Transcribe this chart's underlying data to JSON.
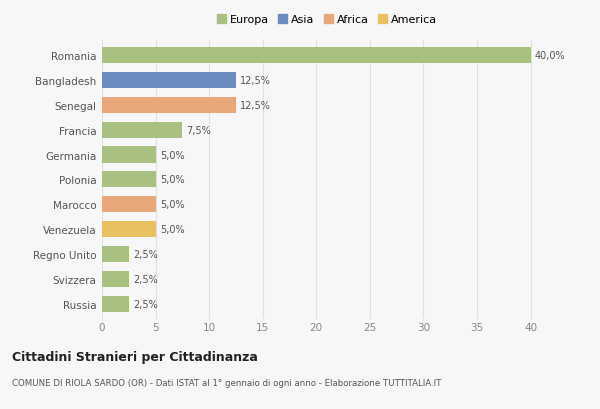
{
  "countries": [
    "Romania",
    "Bangladesh",
    "Senegal",
    "Francia",
    "Germania",
    "Polonia",
    "Marocco",
    "Venezuela",
    "Regno Unito",
    "Svizzera",
    "Russia"
  ],
  "values": [
    40.0,
    12.5,
    12.5,
    7.5,
    5.0,
    5.0,
    5.0,
    5.0,
    2.5,
    2.5,
    2.5
  ],
  "labels": [
    "40,0%",
    "12,5%",
    "12,5%",
    "7,5%",
    "5,0%",
    "5,0%",
    "5,0%",
    "5,0%",
    "2,5%",
    "2,5%",
    "2,5%"
  ],
  "colors": [
    "#a8c080",
    "#6b8cbf",
    "#e8a87c",
    "#a8c080",
    "#a8c080",
    "#a8c080",
    "#e8a87c",
    "#e8c060",
    "#a8c080",
    "#a8c080",
    "#a8c080"
  ],
  "legend_labels": [
    "Europa",
    "Asia",
    "Africa",
    "America"
  ],
  "legend_colors": [
    "#a8c080",
    "#6b8cbf",
    "#e8a87c",
    "#e8c060"
  ],
  "title": "Cittadini Stranieri per Cittadinanza",
  "subtitle": "COMUNE DI RIOLA SARDO (OR) - Dati ISTAT al 1° gennaio di ogni anno - Elaborazione TUTTITALIA.IT",
  "xlabel_ticks": [
    0,
    5,
    10,
    15,
    20,
    25,
    30,
    35,
    40
  ],
  "xlim": [
    0,
    42
  ],
  "background_color": "#f7f7f7",
  "grid_color": "#e0e0e0"
}
